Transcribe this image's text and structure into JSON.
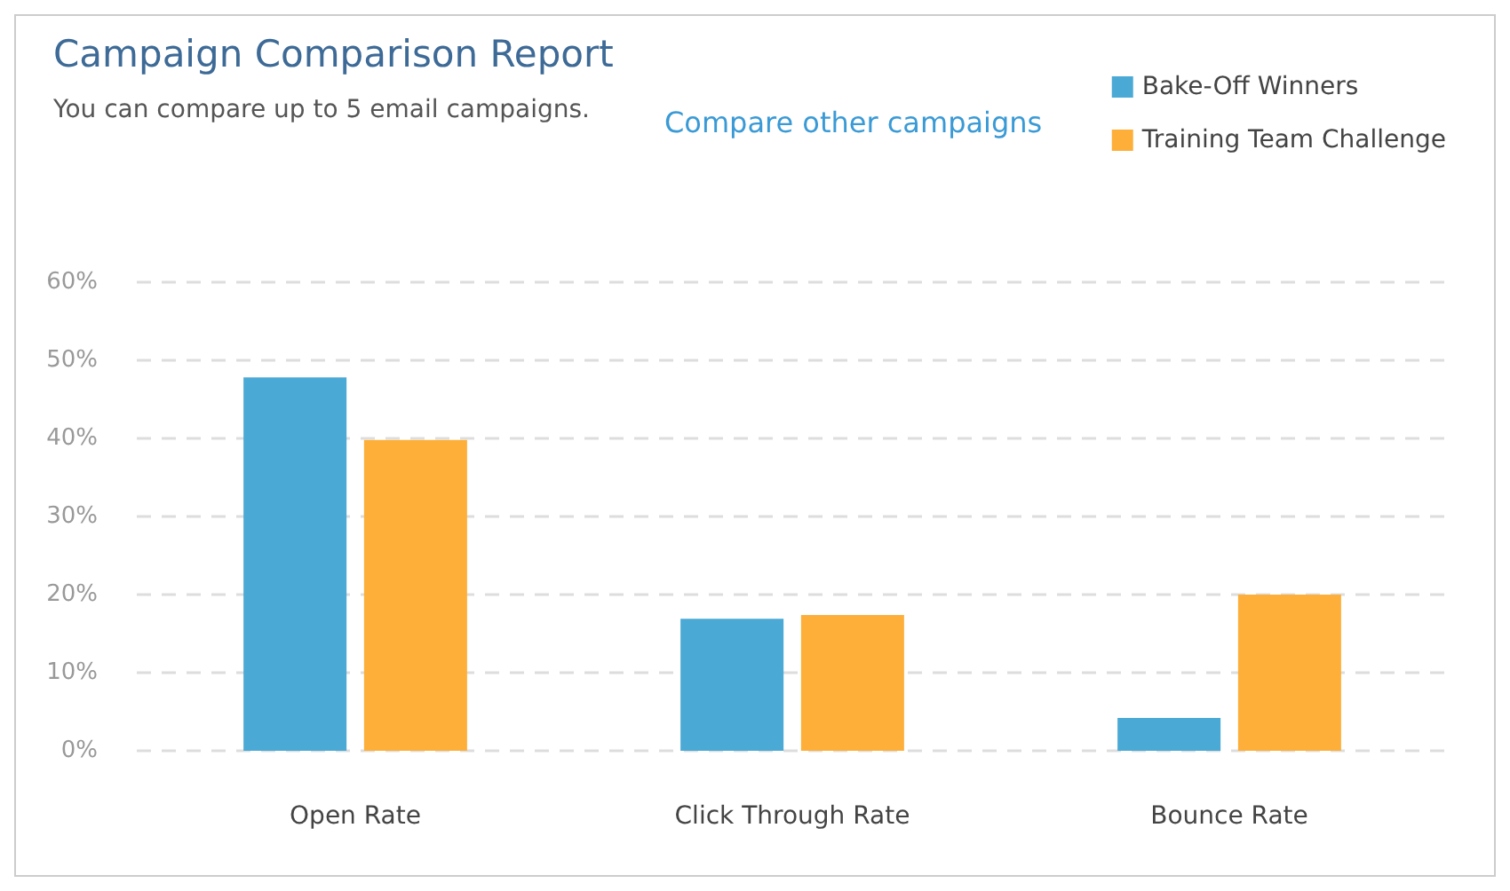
{
  "chart_data": {
    "type": "bar",
    "title": "Campaign Comparison Report",
    "subtitle": "You can compare up to 5 email campaigns.",
    "annotations": [
      "Compare other campaigns"
    ],
    "categories": [
      "Open Rate",
      "Click Through Rate",
      "Bounce Rate"
    ],
    "series": [
      {
        "name": "Bake-Off Winners",
        "color": "#4aa9d5",
        "values": [
          47.8,
          16.9,
          4.2
        ]
      },
      {
        "name": "Training Team Challenge",
        "color": "#fdaf3a",
        "values": [
          39.8,
          17.4,
          20
        ]
      }
    ],
    "ylim": [
      0,
      60
    ],
    "yticks": [
      {
        "value": 0,
        "label": "0%"
      },
      {
        "value": 10,
        "label": "10%"
      },
      {
        "value": 20,
        "label": "20%"
      },
      {
        "value": 30,
        "label": "30%"
      },
      {
        "value": 40,
        "label": "40%"
      },
      {
        "value": 50,
        "label": "50%"
      },
      {
        "value": 60,
        "label": "60%"
      }
    ],
    "grid": "y",
    "legend": "top right"
  }
}
